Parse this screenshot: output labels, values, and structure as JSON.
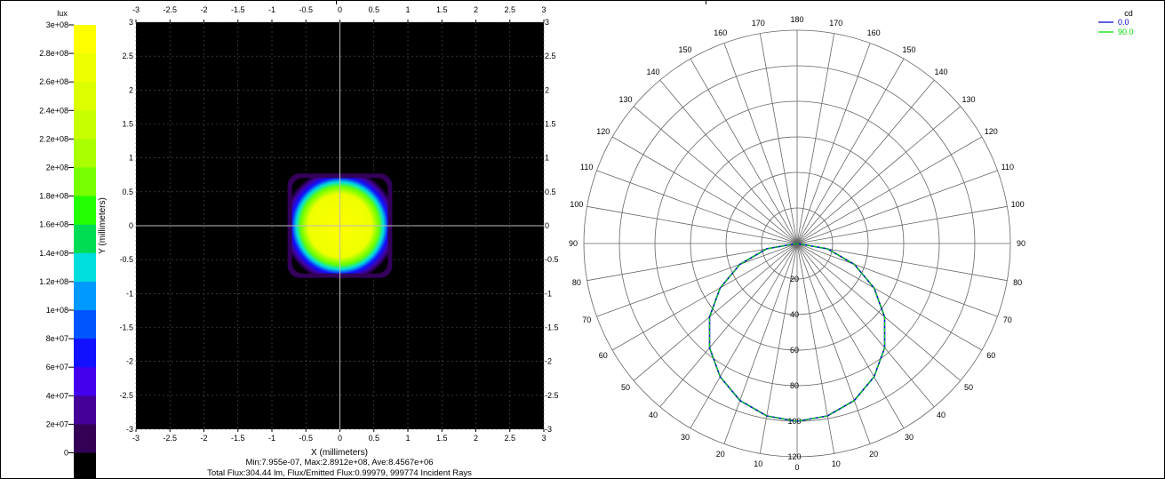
{
  "colorbar": {
    "unit": "lux",
    "labels": [
      "3e+08",
      "2.8e+08",
      "2.6e+08",
      "2.4e+08",
      "2.2e+08",
      "2e+08",
      "1.8e+08",
      "1.6e+08",
      "1.4e+08",
      "1.2e+08",
      "1e+08",
      "8e+07",
      "6e+07",
      "4e+07",
      "2e+07",
      "0"
    ],
    "colors": [
      "#ffff00",
      "#eeff00",
      "#ddff00",
      "#c8ff00",
      "#aaff00",
      "#77ff00",
      "#22ff00",
      "#00dd55",
      "#00dddd",
      "#0099ff",
      "#0055ff",
      "#1111ff",
      "#4400ee",
      "#440099",
      "#330055",
      "#000000"
    ]
  },
  "chart_data": [
    {
      "type": "heatmap",
      "title": "",
      "xlabel": "X (millimeters)",
      "ylabel": "Y (millimeters)",
      "xlim": [
        -3,
        3
      ],
      "ylim": [
        -3,
        3
      ],
      "x_ticks": [
        "-3",
        "-2.5",
        "-2",
        "-1.5",
        "-1",
        "-0.5",
        "0",
        "0.5",
        "1",
        "1.5",
        "2",
        "2.5",
        "3"
      ],
      "y_ticks": [
        "3",
        "2.5",
        "2",
        "1.5",
        "1",
        "0.5",
        "0",
        "-0.5",
        "-1",
        "-1.5",
        "-2",
        "-2.5",
        "-3"
      ],
      "colorbar_unit": "lux",
      "colorbar_range": [
        0,
        300000000
      ],
      "spot": {
        "x_range": [
          -0.6,
          0.6
        ],
        "y_range": [
          -0.6,
          0.6
        ],
        "peak_lux": 289120000
      },
      "grid": true,
      "stats_line1": "Min:7.955e-07, Max:2.8912e+08, Ave:8.4567e+06",
      "stats_line2": "Total Flux:304.44 lm, Flux/Emitted Flux:0.99979, 999774 Incident Rays"
    },
    {
      "type": "line",
      "subtype": "polar",
      "unit": "cd",
      "angle_labels_left": [
        "180",
        "170",
        "160",
        "150",
        "140",
        "130",
        "120",
        "110",
        "100",
        "90",
        "80",
        "70",
        "60",
        "50",
        "40",
        "30",
        "20",
        "10",
        "0"
      ],
      "angle_labels_right": [
        "170",
        "160",
        "150",
        "140",
        "130",
        "120",
        "110",
        "100",
        "90",
        "80",
        "70",
        "60",
        "50",
        "40",
        "30",
        "20",
        "10"
      ],
      "radial_labels": [
        "20",
        "40",
        "60",
        "80",
        "100",
        "120"
      ],
      "radial_range": [
        0,
        120
      ],
      "series": [
        {
          "name": "0.0",
          "color": "#0000cc",
          "angles_deg": [
            0,
            10,
            20,
            30,
            40,
            50,
            60,
            70,
            80,
            90
          ],
          "values": [
            100,
            98.5,
            94,
            86.6,
            76.6,
            64.3,
            50,
            34.2,
            17.4,
            0
          ]
        },
        {
          "name": "90.0",
          "color": "#00dd00",
          "angles_deg": [
            0,
            10,
            20,
            30,
            40,
            50,
            60,
            70,
            80,
            90
          ],
          "values": [
            100,
            98.5,
            94,
            86.6,
            76.6,
            64.3,
            50,
            34.2,
            17.4,
            0
          ]
        }
      ],
      "legend": "top-right"
    }
  ]
}
